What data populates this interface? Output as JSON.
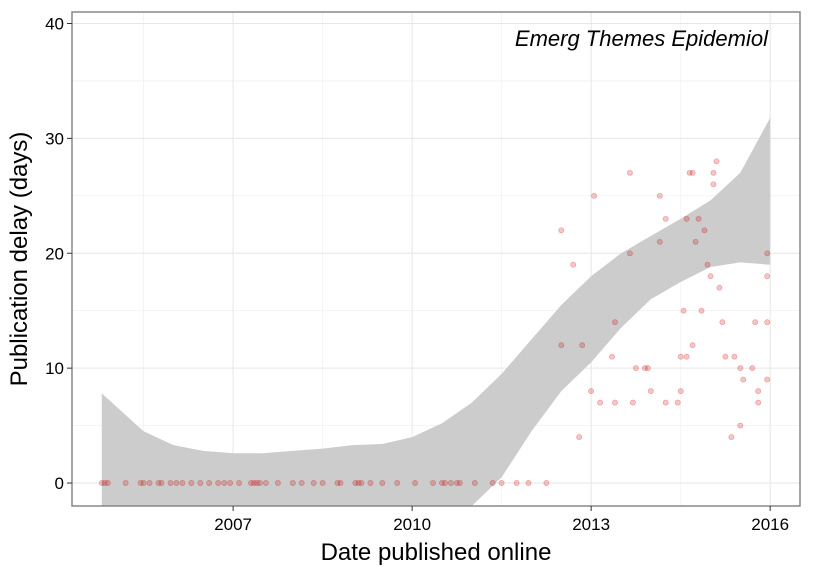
{
  "chart_data": {
    "type": "scatter",
    "xlabel": "Date published online",
    "ylabel": "Publication delay (days)",
    "annotation": "Emerg Themes Epidemiol",
    "xlim": [
      2004.3,
      2016.5
    ],
    "ylim": [
      -2,
      41
    ],
    "x_ticks": [
      {
        "value": 2007,
        "label": "2007"
      },
      {
        "value": 2010,
        "label": "2010"
      },
      {
        "value": 2013,
        "label": "2013"
      },
      {
        "value": 2016,
        "label": "2016"
      }
    ],
    "y_ticks": [
      {
        "value": 0,
        "label": "0"
      },
      {
        "value": 10,
        "label": "10"
      },
      {
        "value": 20,
        "label": "20"
      },
      {
        "value": 30,
        "label": "30"
      },
      {
        "value": 40,
        "label": "40"
      }
    ],
    "grid": true,
    "point_color": "#cc0000",
    "band_color": "#cccccc",
    "points": [
      {
        "x": 2004.8,
        "y": 0
      },
      {
        "x": 2004.85,
        "y": 0
      },
      {
        "x": 2004.9,
        "y": 0
      },
      {
        "x": 2005.2,
        "y": 0
      },
      {
        "x": 2005.45,
        "y": 0
      },
      {
        "x": 2005.5,
        "y": 0
      },
      {
        "x": 2005.6,
        "y": 0
      },
      {
        "x": 2005.75,
        "y": 0
      },
      {
        "x": 2005.8,
        "y": 0
      },
      {
        "x": 2005.95,
        "y": 0
      },
      {
        "x": 2006.05,
        "y": 0
      },
      {
        "x": 2006.15,
        "y": 0
      },
      {
        "x": 2006.3,
        "y": 0
      },
      {
        "x": 2006.45,
        "y": 0
      },
      {
        "x": 2006.6,
        "y": 0
      },
      {
        "x": 2006.75,
        "y": 0
      },
      {
        "x": 2006.85,
        "y": 0
      },
      {
        "x": 2006.95,
        "y": 0
      },
      {
        "x": 2007.1,
        "y": 0
      },
      {
        "x": 2007.3,
        "y": 0
      },
      {
        "x": 2007.35,
        "y": 0
      },
      {
        "x": 2007.4,
        "y": 0
      },
      {
        "x": 2007.45,
        "y": 0
      },
      {
        "x": 2007.55,
        "y": 0
      },
      {
        "x": 2007.75,
        "y": 0
      },
      {
        "x": 2008.0,
        "y": 0
      },
      {
        "x": 2008.15,
        "y": 0
      },
      {
        "x": 2008.35,
        "y": 0
      },
      {
        "x": 2008.5,
        "y": 0
      },
      {
        "x": 2008.75,
        "y": 0
      },
      {
        "x": 2008.8,
        "y": 0
      },
      {
        "x": 2009.05,
        "y": 0
      },
      {
        "x": 2009.1,
        "y": 0
      },
      {
        "x": 2009.15,
        "y": 0
      },
      {
        "x": 2009.3,
        "y": 0
      },
      {
        "x": 2009.5,
        "y": 0
      },
      {
        "x": 2009.75,
        "y": 0
      },
      {
        "x": 2010.05,
        "y": 0
      },
      {
        "x": 2010.35,
        "y": 0
      },
      {
        "x": 2010.5,
        "y": 0
      },
      {
        "x": 2010.55,
        "y": 0
      },
      {
        "x": 2010.65,
        "y": 0
      },
      {
        "x": 2010.75,
        "y": 0
      },
      {
        "x": 2010.8,
        "y": 0
      },
      {
        "x": 2011.05,
        "y": 0
      },
      {
        "x": 2011.35,
        "y": 0
      },
      {
        "x": 2011.5,
        "y": 0
      },
      {
        "x": 2011.75,
        "y": 0
      },
      {
        "x": 2011.95,
        "y": 0
      },
      {
        "x": 2012.25,
        "y": 0
      },
      {
        "x": 2012.5,
        "y": 22
      },
      {
        "x": 2012.5,
        "y": 12
      },
      {
        "x": 2012.7,
        "y": 19
      },
      {
        "x": 2012.8,
        "y": 4
      },
      {
        "x": 2012.85,
        "y": 12
      },
      {
        "x": 2013.0,
        "y": 8
      },
      {
        "x": 2013.05,
        "y": 25
      },
      {
        "x": 2013.15,
        "y": 7
      },
      {
        "x": 2013.35,
        "y": 11
      },
      {
        "x": 2013.4,
        "y": 7
      },
      {
        "x": 2013.4,
        "y": 14
      },
      {
        "x": 2013.65,
        "y": 27
      },
      {
        "x": 2013.65,
        "y": 20
      },
      {
        "x": 2013.7,
        "y": 7
      },
      {
        "x": 2013.75,
        "y": 10
      },
      {
        "x": 2013.9,
        "y": 10
      },
      {
        "x": 2013.95,
        "y": 10
      },
      {
        "x": 2014.0,
        "y": 8
      },
      {
        "x": 2014.15,
        "y": 25
      },
      {
        "x": 2014.15,
        "y": 21
      },
      {
        "x": 2014.25,
        "y": 23
      },
      {
        "x": 2014.25,
        "y": 7
      },
      {
        "x": 2014.45,
        "y": 7
      },
      {
        "x": 2014.5,
        "y": 8
      },
      {
        "x": 2014.5,
        "y": 11
      },
      {
        "x": 2014.55,
        "y": 15
      },
      {
        "x": 2014.6,
        "y": 23
      },
      {
        "x": 2014.6,
        "y": 11
      },
      {
        "x": 2014.65,
        "y": 27
      },
      {
        "x": 2014.7,
        "y": 27
      },
      {
        "x": 2014.7,
        "y": 12
      },
      {
        "x": 2014.75,
        "y": 21
      },
      {
        "x": 2014.8,
        "y": 23
      },
      {
        "x": 2014.85,
        "y": 15
      },
      {
        "x": 2014.9,
        "y": 22
      },
      {
        "x": 2014.95,
        "y": 19
      },
      {
        "x": 2015.0,
        "y": 18
      },
      {
        "x": 2015.05,
        "y": 27
      },
      {
        "x": 2015.05,
        "y": 26
      },
      {
        "x": 2015.1,
        "y": 28
      },
      {
        "x": 2015.15,
        "y": 17
      },
      {
        "x": 2015.2,
        "y": 14
      },
      {
        "x": 2015.25,
        "y": 11
      },
      {
        "x": 2015.35,
        "y": 4
      },
      {
        "x": 2015.4,
        "y": 11
      },
      {
        "x": 2015.5,
        "y": 10
      },
      {
        "x": 2015.5,
        "y": 5
      },
      {
        "x": 2015.55,
        "y": 9
      },
      {
        "x": 2015.7,
        "y": 10
      },
      {
        "x": 2015.75,
        "y": 14
      },
      {
        "x": 2015.8,
        "y": 8
      },
      {
        "x": 2015.8,
        "y": 7
      },
      {
        "x": 2015.95,
        "y": 20
      },
      {
        "x": 2015.95,
        "y": 18
      },
      {
        "x": 2015.95,
        "y": 14
      },
      {
        "x": 2015.95,
        "y": 9
      }
    ],
    "smooth_band": {
      "x": [
        2004.8,
        2005.5,
        2006.0,
        2006.5,
        2007.0,
        2007.5,
        2008.0,
        2008.5,
        2009.0,
        2009.5,
        2010.0,
        2010.5,
        2011.0,
        2011.5,
        2012.0,
        2012.5,
        2013.0,
        2013.5,
        2014.0,
        2014.5,
        2015.0,
        2015.5,
        2016.0
      ],
      "upper": [
        7.8,
        4.5,
        3.3,
        2.8,
        2.6,
        2.6,
        2.8,
        3.0,
        3.3,
        3.4,
        4.0,
        5.2,
        7.0,
        9.5,
        12.5,
        15.5,
        18.0,
        20.0,
        21.5,
        23.0,
        24.6,
        27.0,
        31.8
      ],
      "lower": [
        -2.0,
        -2.0,
        -2.0,
        -2.0,
        -2.0,
        -2.0,
        -2.0,
        -2.0,
        -2.0,
        -2.0,
        -2.0,
        -2.0,
        -2.0,
        0.5,
        4.5,
        8.0,
        10.5,
        13.5,
        16.0,
        17.5,
        18.8,
        19.2,
        19.0
      ]
    }
  }
}
